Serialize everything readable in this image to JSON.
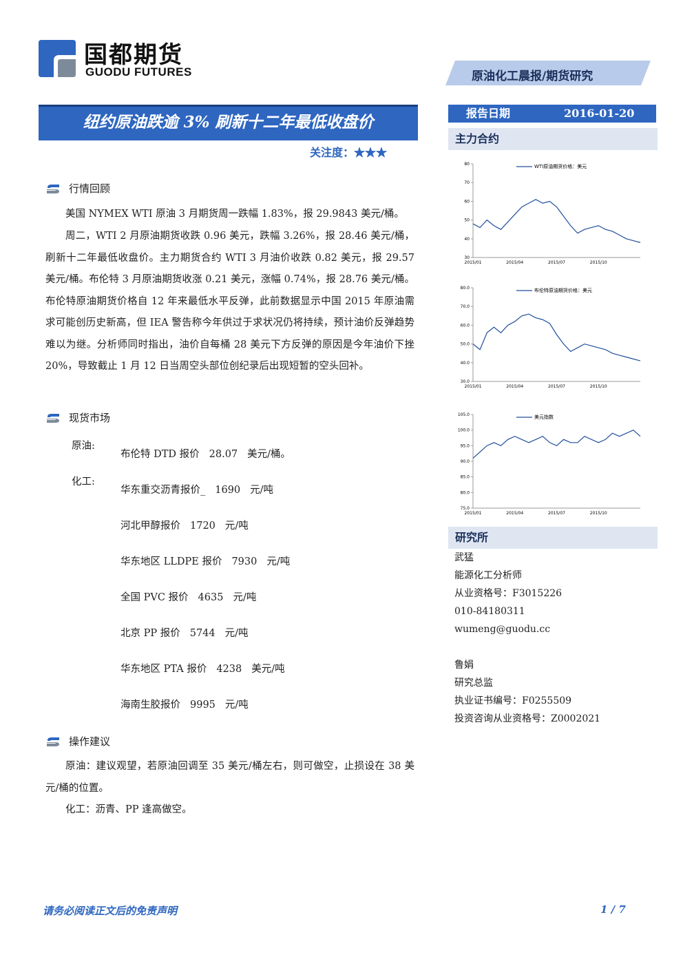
{
  "header": {
    "logo_cn": "国都期货",
    "logo_en": "GUODU FUTURES",
    "tag": "原油化工晨报/期货研究"
  },
  "title": "纽约原油跌逾 3% 刷新十二年最低收盘价",
  "attention": {
    "label": "关注度：",
    "stars": "★★★"
  },
  "review": {
    "heading": "行情回顾",
    "paragraphs": [
      "美国 NYMEX WTI 原油 3 月期货周一跌幅 1.83%，报 29.9843 美元/桶。",
      "周二，WTI 2 月原油期货收跌 0.96 美元，跌幅 3.26%，报 28.46 美元/桶，刷新十二年最低收盘价。主力期货合约 WTI 3 月油价收跌 0.82 美元，报 29.57 美元/桶。布伦特 3 月原油期货收涨 0.21 美元，涨幅 0.74%，报 28.76 美元/桶。布伦特原油期货价格自 12 年来最低水平反弹，此前数据显示中国 2015 年原油需求可能创历史新高，但 IEA 警告称今年供过于求状况仍将持续，预计油价反弹趋势难以为继。分析师同时指出，油价自每桶 28 美元下方反弹的原因是今年油价下挫 20%，导致截止 1 月 12 日当周空头部位创纪录后出现短暂的空头回补。"
    ]
  },
  "spot": {
    "heading": "现货市场",
    "crude_label": "原油:",
    "crude": [
      {
        "name": "布伦特 DTD 报价",
        "price": "28.07",
        "unit": "美元/桶。"
      }
    ],
    "chem_label": "化工:",
    "chem": [
      {
        "name": "华东重交沥青报价_",
        "price": "1690",
        "unit": "元/吨"
      },
      {
        "name": "河北甲醇报价",
        "price": "1720",
        "unit": "元/吨"
      },
      {
        "name": "华东地区 LLDPE 报价",
        "price": "7930",
        "unit": "元/吨"
      },
      {
        "name": "全国 PVC 报价",
        "price": "4635",
        "unit": "元/吨"
      },
      {
        "name": "北京 PP 报价",
        "price": "5744",
        "unit": "元/吨"
      },
      {
        "name": "华东地区 PTA 报价",
        "price": "4238",
        "unit": "美元/吨"
      },
      {
        "name": "海南生胶报价",
        "price": "9995",
        "unit": "元/吨"
      }
    ]
  },
  "advice": {
    "heading": "操作建议",
    "paragraphs": [
      "原油：建议观望，若原油回调至 35 美元/桶左右，则可做空，止损设在 38 美元/桶的位置。",
      "化工：沥青、PP 逢高做空。"
    ]
  },
  "sidebar": {
    "date_label": "报告日期",
    "date": "2016-01-20",
    "contracts_heading": "主力合约",
    "research_heading": "研究所",
    "analysts": [
      [
        "武猛",
        "能源化工分析师",
        "从业资格号：F3015226",
        "010-84180311",
        "wumeng@guodu.cc"
      ],
      [
        "鲁娟",
        "研究总监",
        "执业证书编号：F0255509",
        "投资咨询从业资格号：Z0002021"
      ]
    ]
  },
  "footer": {
    "disclaimer": "请务必阅读正文后的免责声明",
    "page": "1 / 7"
  },
  "chart_data": [
    {
      "type": "line",
      "categories": [
        "2015/01",
        null,
        null,
        null,
        null,
        null,
        "2015/04",
        null,
        null,
        null,
        null,
        null,
        "2015/07",
        null,
        null,
        null,
        null,
        null,
        "2015/10",
        null,
        null,
        null,
        null,
        null,
        null
      ],
      "series": [
        {
          "name": "WTI原油期货价格：美元",
          "color": "#1f4e9c",
          "values": [
            48,
            46,
            50,
            47,
            45,
            49,
            53,
            57,
            59,
            61,
            59,
            60,
            57,
            52,
            47,
            43,
            45,
            46,
            47,
            45,
            44,
            42,
            40,
            39,
            38
          ]
        }
      ],
      "ylim": [
        30,
        80
      ],
      "yticks": [
        30,
        40,
        50,
        60,
        70,
        80
      ]
    },
    {
      "type": "line",
      "categories": [
        "2015/01",
        null,
        null,
        null,
        null,
        null,
        "2015/04",
        null,
        null,
        null,
        null,
        null,
        "2015/07",
        null,
        null,
        null,
        null,
        null,
        "2015/10",
        null,
        null,
        null,
        null,
        null,
        null
      ],
      "series": [
        {
          "name": "布伦特原油期货价格：美元",
          "color": "#1f4e9c",
          "values": [
            50,
            47,
            56,
            59,
            56,
            60,
            62,
            65,
            66,
            64,
            63,
            61,
            55,
            50,
            46,
            48,
            50,
            49,
            48,
            47,
            45,
            44,
            43,
            42,
            41
          ]
        }
      ],
      "ylim": [
        30,
        80
      ],
      "yticks": [
        {
          "value": 30,
          "label": "30.0"
        },
        {
          "value": 40,
          "label": "40.0"
        },
        {
          "value": 50,
          "label": "50.0"
        },
        {
          "value": 60,
          "label": "60.0"
        },
        {
          "value": 70,
          "label": "70.0"
        },
        {
          "value": 80,
          "label": "80.0"
        }
      ]
    },
    {
      "type": "line",
      "categories": [
        "2015/01",
        null,
        null,
        null,
        null,
        null,
        "2015/04",
        null,
        null,
        null,
        null,
        null,
        "2015/07",
        null,
        null,
        null,
        null,
        null,
        "2015/10",
        null,
        null,
        null,
        null,
        null,
        null
      ],
      "series": [
        {
          "name": "美元指数",
          "color": "#1f4e9c",
          "values": [
            91,
            93,
            95,
            96,
            95,
            97,
            98,
            97,
            96,
            97,
            98,
            96,
            95,
            97,
            96,
            96,
            98,
            97,
            96,
            97,
            99,
            98,
            99,
            100,
            98
          ]
        }
      ],
      "ylim": [
        75,
        105
      ],
      "yticks": [
        {
          "value": 75,
          "label": "75.0"
        },
        {
          "value": 80,
          "label": "80.0"
        },
        {
          "value": 85,
          "label": "85.0"
        },
        {
          "value": 90,
          "label": "90.0"
        },
        {
          "value": 95,
          "label": "95.0"
        },
        {
          "value": 100,
          "label": "100.0"
        },
        {
          "value": 105,
          "label": "105.0"
        }
      ]
    }
  ]
}
